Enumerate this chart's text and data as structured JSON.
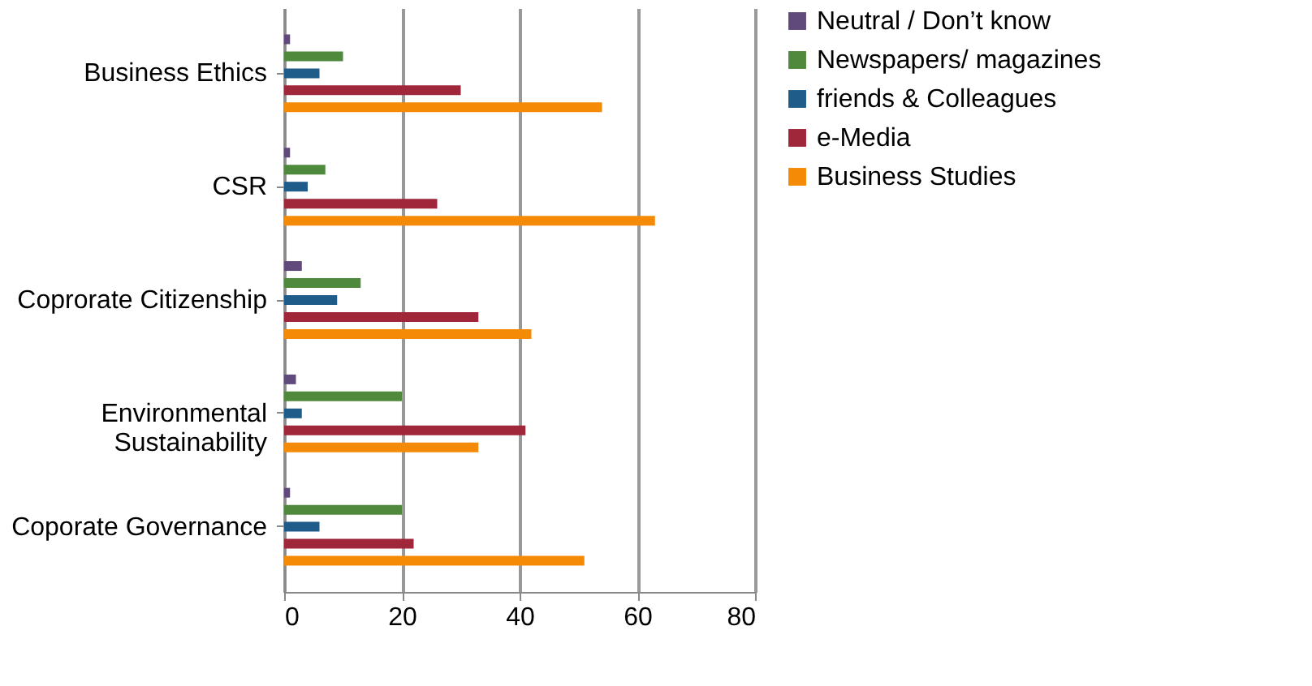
{
  "chart_data": {
    "type": "bar",
    "orientation": "horizontal",
    "categories": [
      "Business Ethics",
      "CSR",
      "Coprorate  Citizenship",
      "Environmental\nSustainability",
      "Coporate Governance"
    ],
    "series": [
      {
        "name": "Neutral / Don’t know",
        "color": "#604a7b",
        "values": [
          1,
          1,
          3,
          2,
          1
        ]
      },
      {
        "name": "Newspapers/ magazines",
        "color": "#4f8a3c",
        "values": [
          10,
          7,
          13,
          20,
          20
        ]
      },
      {
        "name": "friends & Colleagues",
        "color": "#1f5c8a",
        "values": [
          6,
          4,
          9,
          3,
          6
        ]
      },
      {
        "name": "e-Media",
        "color": "#a0263a",
        "values": [
          30,
          26,
          33,
          41,
          22
        ]
      },
      {
        "name": "Business Studies",
        "color": "#f58a07",
        "values": [
          54,
          63,
          42,
          33,
          51
        ]
      }
    ],
    "xlim": [
      0,
      80
    ],
    "xticks": [
      0,
      20,
      40,
      60,
      80
    ],
    "grid": "x",
    "legend": "right"
  }
}
